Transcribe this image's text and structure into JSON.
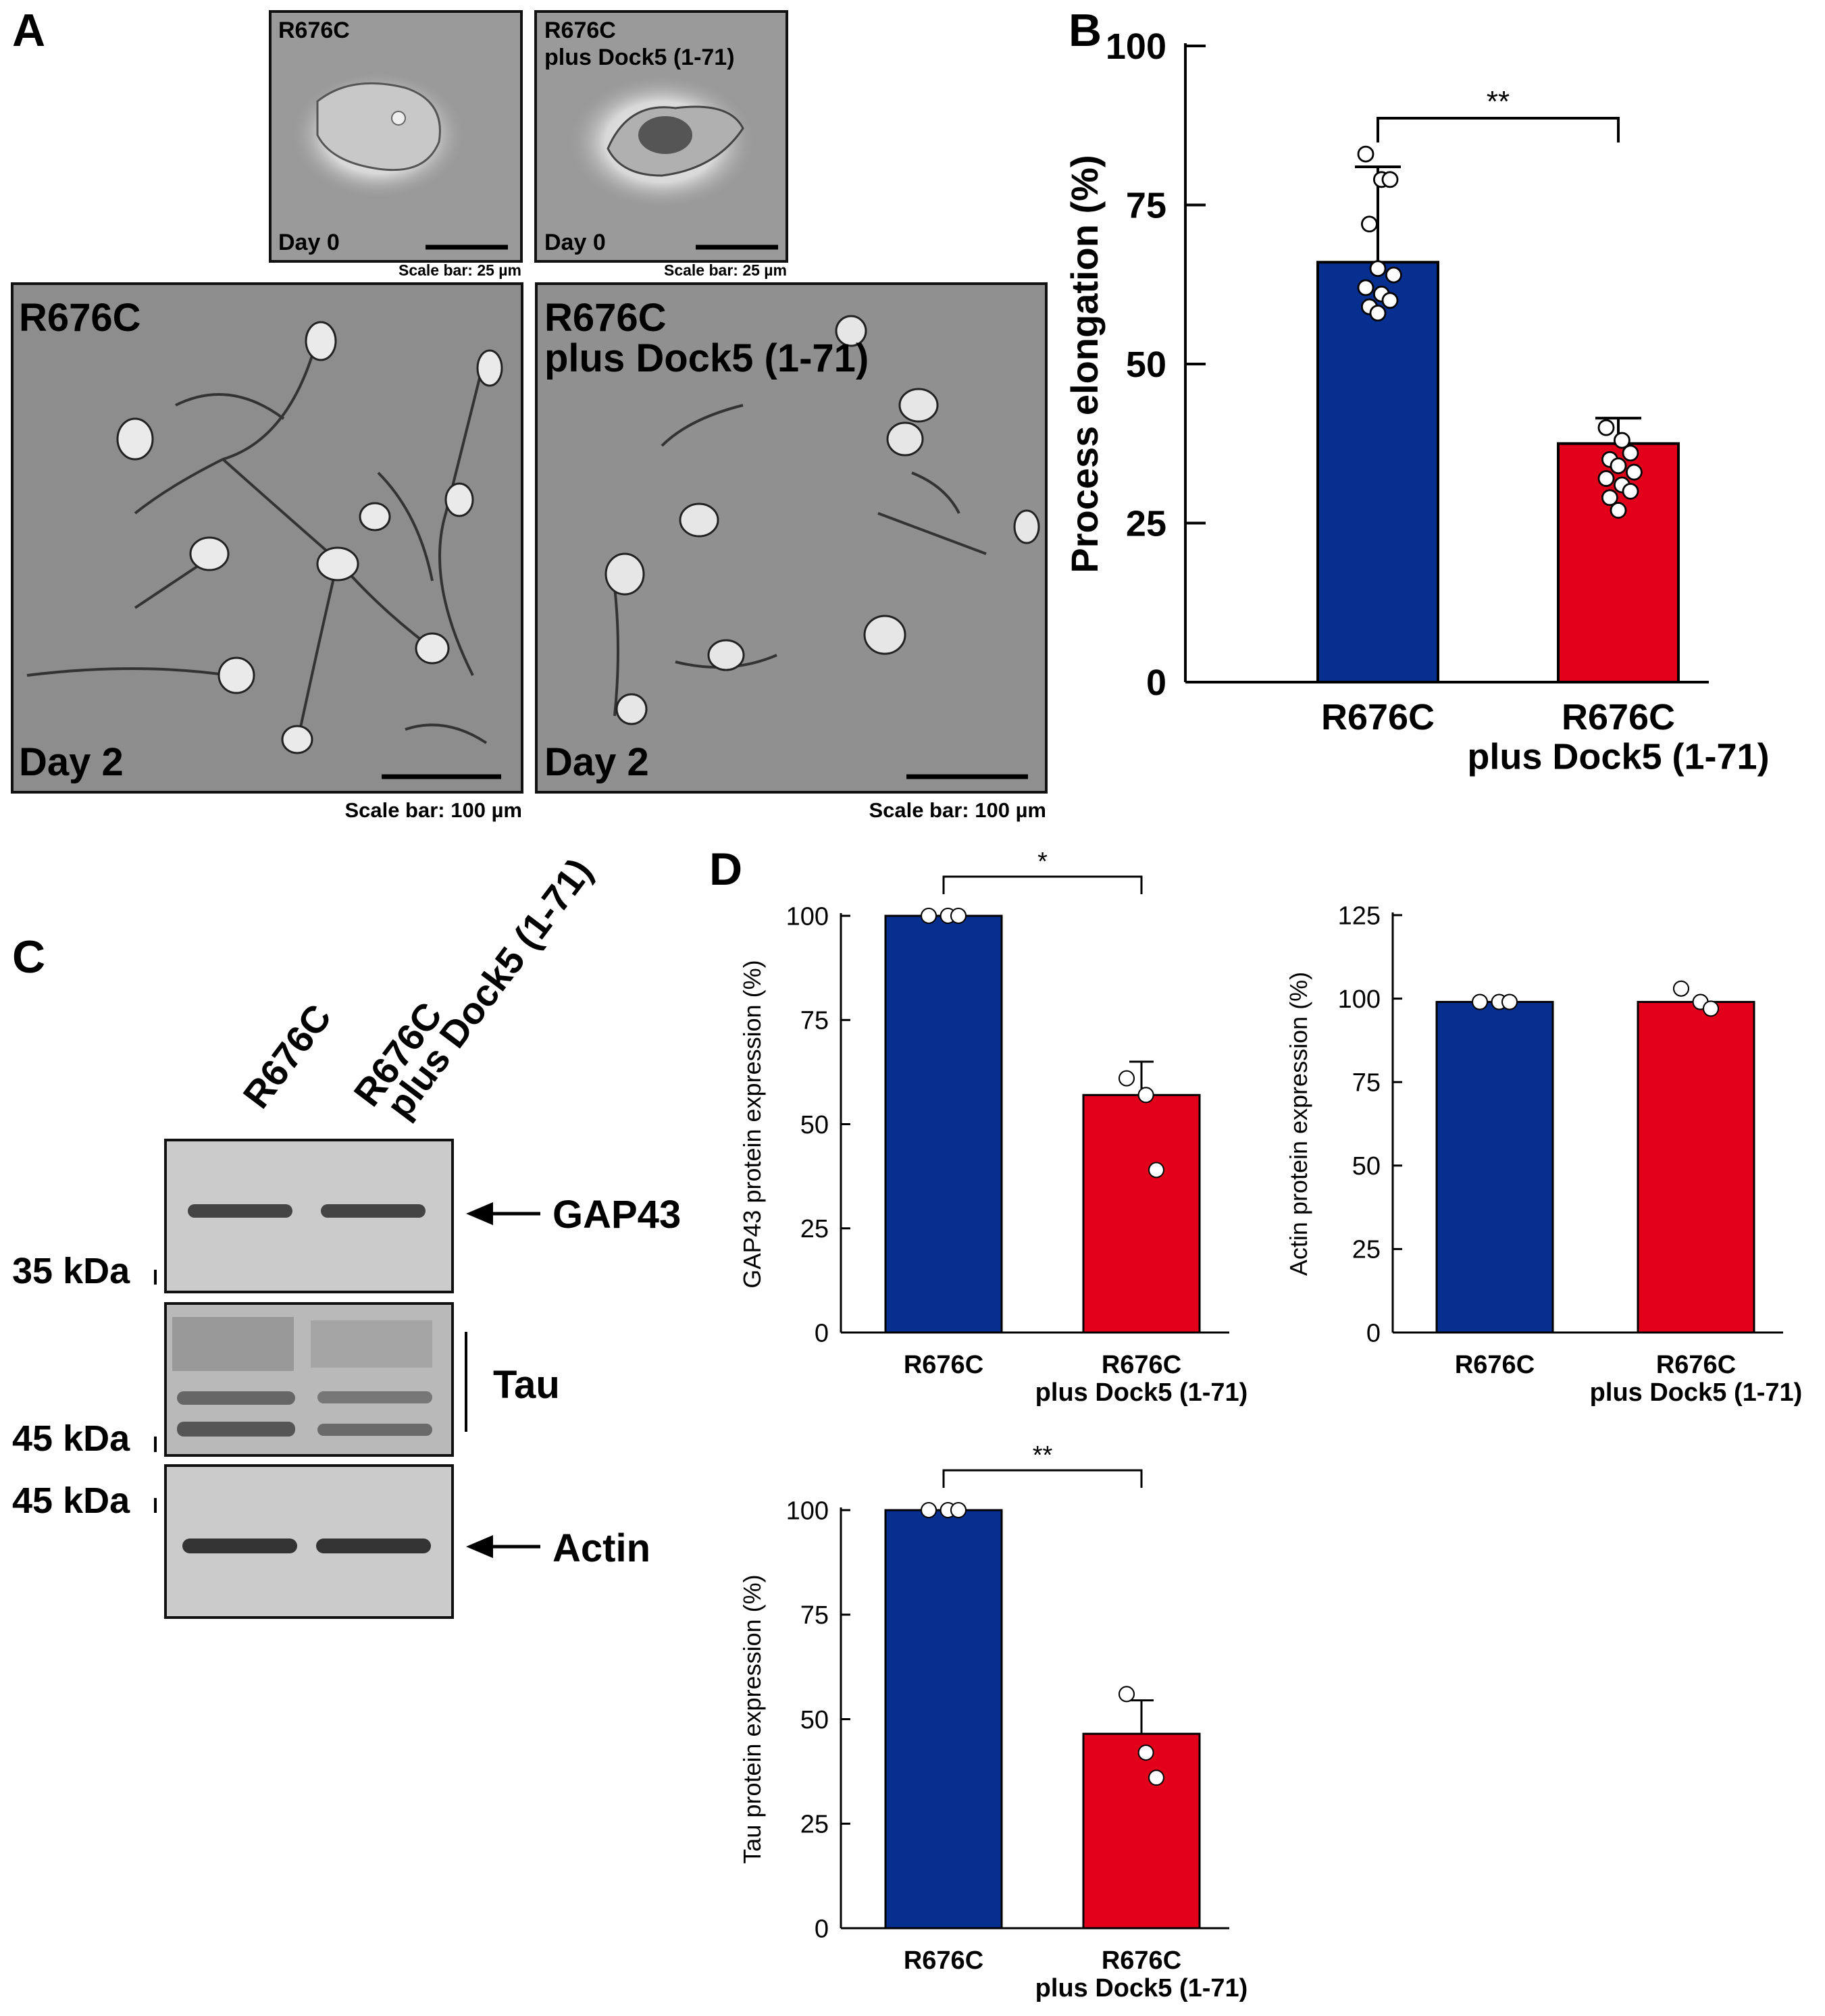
{
  "panel_letters": {
    "a": "A",
    "b": "B",
    "c": "C",
    "d": "D"
  },
  "colors": {
    "blue": "#062f8f",
    "red": "#e3001b",
    "micrograph_bg": "#8d8d8d",
    "blot_bg": "#c9c9c9"
  },
  "panel_a": {
    "top_left": {
      "title": "R676C",
      "day": "Day 0",
      "scale": "Scale bar: 25 µm"
    },
    "top_right": {
      "title_1": "R676C",
      "title_2": "plus Dock5 (1-71)",
      "day": "Day 0",
      "scale": "Scale bar: 25 µm"
    },
    "bottom_left": {
      "title": "R676C",
      "day": "Day 2",
      "scale": "Scale bar: 100 µm"
    },
    "bottom_right": {
      "title_1": "R676C",
      "title_2": "plus Dock5 (1-71)",
      "day": "Day 2",
      "scale": "Scale bar: 100 µm"
    }
  },
  "panel_c": {
    "lane_1": "R676C",
    "lane_2_line1": "R676C",
    "lane_2_line2": "plus Dock5 (1-71)",
    "marker_35": "35 kDa",
    "marker_45a": "45 kDa",
    "marker_45b": "45 kDa",
    "gap43": "GAP43",
    "tau": "Tau",
    "actin": "Actin"
  },
  "chart_data": [
    {
      "id": "B",
      "type": "bar",
      "ylabel": "Process elongation (%)",
      "ylim": [
        0,
        100
      ],
      "yticks": [
        0,
        25,
        50,
        75,
        100
      ],
      "categories": [
        "R676C",
        "R676C\nplus Dock5 (1-71)"
      ],
      "values": [
        66,
        37.5
      ],
      "errors": [
        15,
        4
      ],
      "points": [
        [
          83,
          79,
          79,
          72,
          65,
          64,
          62,
          61,
          60,
          59,
          58
        ],
        [
          40,
          38,
          36,
          35,
          34,
          33,
          32,
          31,
          30,
          29,
          27
        ]
      ],
      "significance": "**"
    },
    {
      "id": "D-GAP43",
      "type": "bar",
      "ylabel": "GAP43 protein expression (%)",
      "ylim": [
        0,
        100
      ],
      "yticks": [
        0,
        25,
        50,
        75,
        100
      ],
      "categories": [
        "R676C",
        "R676C\nplus Dock5 (1-71)"
      ],
      "values": [
        100,
        57
      ],
      "errors": [
        0,
        8
      ],
      "points": [
        [
          100,
          100,
          100
        ],
        [
          61,
          57,
          39
        ]
      ],
      "significance": "*"
    },
    {
      "id": "D-Actin",
      "type": "bar",
      "ylabel": "Actin protein expression (%)",
      "ylim": [
        0,
        125
      ],
      "yticks": [
        0,
        25,
        50,
        75,
        100,
        125
      ],
      "categories": [
        "R676C",
        "R676C\nplus Dock5 (1-71)"
      ],
      "values": [
        99,
        99
      ],
      "errors": [
        0,
        0
      ],
      "points": [
        [
          99,
          99,
          99
        ],
        [
          103,
          99,
          97
        ]
      ],
      "significance": ""
    },
    {
      "id": "D-Tau",
      "type": "bar",
      "ylabel": "Tau protein expression (%)",
      "ylim": [
        0,
        100
      ],
      "yticks": [
        0,
        25,
        50,
        75,
        100
      ],
      "categories": [
        "R676C",
        "R676C\nplus Dock5 (1-71)"
      ],
      "values": [
        100,
        46.5
      ],
      "errors": [
        0,
        8
      ],
      "points": [
        [
          100,
          100,
          100
        ],
        [
          56,
          42,
          36
        ]
      ],
      "significance": "**"
    }
  ]
}
